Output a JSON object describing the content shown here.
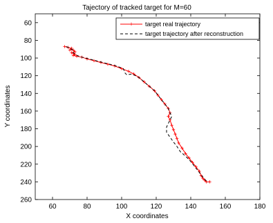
{
  "chart_data": {
    "type": "line",
    "title": "Tajectory of tracked target for M=60",
    "xlabel": "X coordinates",
    "ylabel": "Y coordinates",
    "xlim": [
      50,
      180
    ],
    "ylim": [
      260,
      50
    ],
    "y_axis_reversed": true,
    "xticks": [
      60,
      80,
      100,
      120,
      140,
      160,
      180
    ],
    "yticks": [
      60,
      80,
      100,
      120,
      140,
      160,
      180,
      200,
      220,
      240,
      260
    ],
    "grid": false,
    "legend_position": "top-right",
    "series": [
      {
        "name": "target real trajectory",
        "color": "#ff0000",
        "line_style": "solid",
        "marker": "+",
        "points": [
          [
            67,
            87
          ],
          [
            69,
            88
          ],
          [
            71,
            89
          ],
          [
            70,
            91
          ],
          [
            72,
            91
          ],
          [
            73,
            93
          ],
          [
            71,
            94
          ],
          [
            73,
            96
          ],
          [
            72,
            97
          ],
          [
            74,
            98
          ],
          [
            77,
            99
          ],
          [
            80,
            101
          ],
          [
            84,
            103
          ],
          [
            88,
            105
          ],
          [
            92,
            107
          ],
          [
            96,
            109
          ],
          [
            100,
            112
          ],
          [
            104,
            115
          ],
          [
            107,
            118
          ],
          [
            110,
            122
          ],
          [
            113,
            127
          ],
          [
            116,
            132
          ],
          [
            119,
            137
          ],
          [
            121,
            142
          ],
          [
            123,
            147
          ],
          [
            125,
            152
          ],
          [
            127,
            157
          ],
          [
            128,
            162
          ],
          [
            127,
            166
          ],
          [
            128,
            170
          ],
          [
            129,
            176
          ],
          [
            130,
            181
          ],
          [
            131,
            186
          ],
          [
            132,
            191
          ],
          [
            133,
            196
          ],
          [
            135,
            202
          ],
          [
            137,
            208
          ],
          [
            139,
            213
          ],
          [
            141,
            218
          ],
          [
            143,
            223
          ],
          [
            145,
            228
          ],
          [
            146,
            233
          ],
          [
            147,
            236
          ],
          [
            148,
            238
          ],
          [
            149,
            240
          ],
          [
            151,
            240
          ]
        ]
      },
      {
        "name": "target  trajectory after reconstruction",
        "color": "#000000",
        "line_style": "dashed",
        "marker": "none",
        "points": [
          [
            68,
            87
          ],
          [
            70,
            89
          ],
          [
            72,
            91
          ],
          [
            72,
            94
          ],
          [
            74,
            97
          ],
          [
            77,
            99
          ],
          [
            81,
            101
          ],
          [
            85,
            103
          ],
          [
            89,
            105
          ],
          [
            93,
            107
          ],
          [
            97,
            109
          ],
          [
            101,
            112
          ],
          [
            102,
            117
          ],
          [
            103,
            119
          ],
          [
            106,
            118
          ],
          [
            110,
            122
          ],
          [
            113,
            127
          ],
          [
            116,
            132
          ],
          [
            119,
            137
          ],
          [
            121,
            142
          ],
          [
            123,
            147
          ],
          [
            125,
            152
          ],
          [
            127,
            157
          ],
          [
            128,
            162
          ],
          [
            129,
            166
          ],
          [
            126,
            178
          ],
          [
            126,
            184
          ],
          [
            130,
            195
          ],
          [
            132,
            200
          ],
          [
            134,
            206
          ],
          [
            137,
            211
          ],
          [
            140,
            217
          ],
          [
            142,
            222
          ],
          [
            144,
            227
          ],
          [
            146,
            232
          ],
          [
            148,
            237
          ],
          [
            150,
            241
          ]
        ]
      }
    ]
  }
}
